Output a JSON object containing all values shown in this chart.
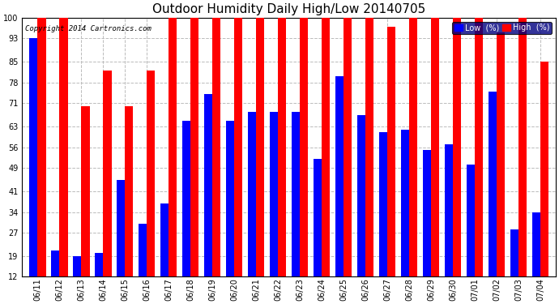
{
  "title": "Outdoor Humidity Daily High/Low 20140705",
  "copyright": "Copyright 2014 Cartronics.com",
  "dates": [
    "06/11",
    "06/12",
    "06/13",
    "06/14",
    "06/15",
    "06/16",
    "06/17",
    "06/18",
    "06/19",
    "06/20",
    "06/21",
    "06/22",
    "06/23",
    "06/24",
    "06/25",
    "06/26",
    "06/27",
    "06/28",
    "06/29",
    "06/30",
    "07/01",
    "07/02",
    "07/03",
    "07/04"
  ],
  "high": [
    100,
    100,
    70,
    82,
    70,
    82,
    100,
    100,
    100,
    100,
    100,
    100,
    100,
    100,
    100,
    100,
    97,
    100,
    100,
    100,
    100,
    95,
    100,
    85
  ],
  "low": [
    93,
    21,
    19,
    20,
    45,
    30,
    37,
    65,
    74,
    65,
    68,
    68,
    68,
    52,
    80,
    67,
    61,
    62,
    55,
    57,
    50,
    75,
    28,
    34
  ],
  "high_color": "#ff0000",
  "low_color": "#0000ff",
  "bg_color": "#ffffff",
  "grid_color": "#bbbbbb",
  "ylim_min": 12,
  "ylim_max": 100,
  "yticks": [
    12,
    19,
    27,
    34,
    41,
    49,
    56,
    63,
    71,
    78,
    85,
    93,
    100
  ],
  "bar_width": 0.38,
  "title_fontsize": 11,
  "tick_fontsize": 7,
  "legend_low_label": "Low  (%)",
  "legend_high_label": "High  (%)",
  "figwidth": 6.9,
  "figheight": 3.75,
  "dpi": 100
}
